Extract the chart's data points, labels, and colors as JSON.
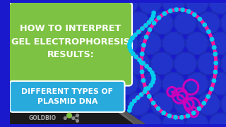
{
  "bg_color": "#1a1acc",
  "title_box_color": "#7dc242",
  "title_box_text": "HOW TO INTERPRET\nGEL ELECTROPHORESIS\nRESULTS:",
  "subtitle_box_color": "#29aadd",
  "subtitle_box_text": "DIFFERENT TYPES OF\nPLASMID DNA",
  "title_text_color": "#ffffff",
  "subtitle_text_color": "#ffffff",
  "goldbio_text_color": "#aaaaaa",
  "goldbio_text": "GOLDBIO",
  "dark_triangle_color": "#333333",
  "gray_triangle_color": "#888888",
  "hex_fill": "#2233cc",
  "hex_edge": "#1a28aa",
  "dna_pink": "#ff1199",
  "dna_cyan": "#00ccee",
  "dna_magenta": "#cc00bb",
  "logo_green": "#7dc242",
  "logo_gray": "#888888"
}
